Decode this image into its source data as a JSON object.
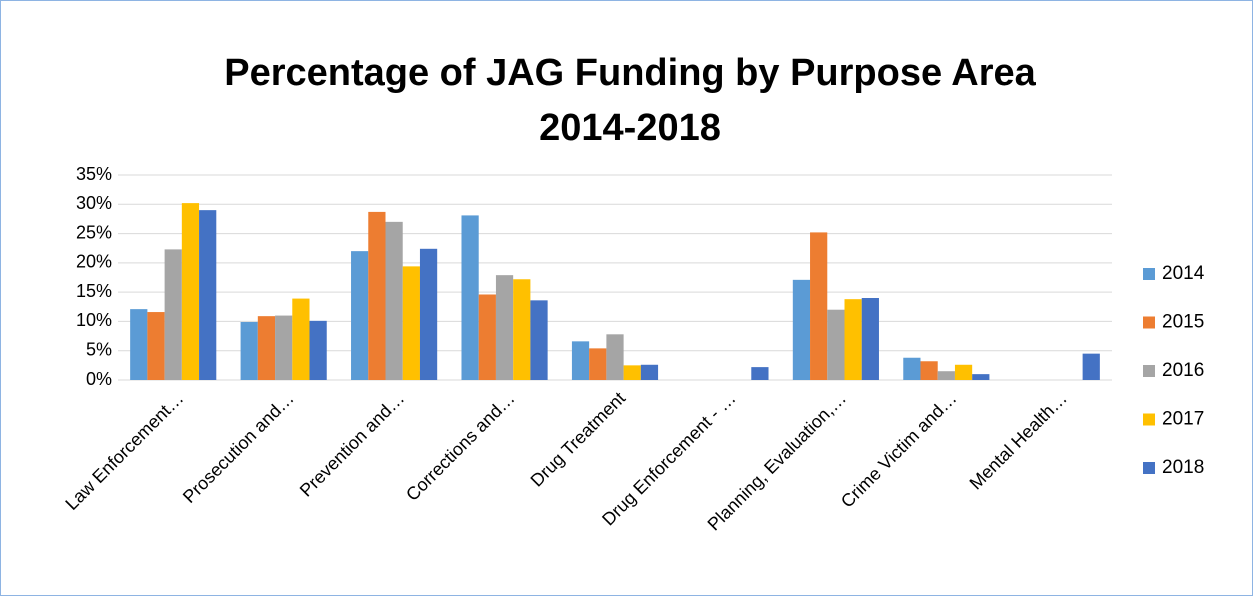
{
  "chart_data": {
    "type": "bar",
    "title": [
      "Percentage of JAG Funding by Purpose Area",
      "2014-2018"
    ],
    "categories": [
      "Law Enforcement…",
      "Prosecution and…",
      "Prevention and…",
      "Corrections and…",
      "Drug Treatment",
      "Drug Enforcement - …",
      "Planning, Evaluation,…",
      "Crime Victim and…",
      "Mental Health…"
    ],
    "series": [
      {
        "name": "2014",
        "color": "#5b9bd5",
        "values": [
          12.1,
          9.9,
          22.0,
          28.1,
          6.6,
          0,
          17.1,
          3.8,
          0
        ]
      },
      {
        "name": "2015",
        "color": "#ed7d31",
        "values": [
          11.6,
          10.9,
          28.7,
          14.6,
          5.4,
          0,
          25.2,
          3.2,
          0
        ]
      },
      {
        "name": "2016",
        "color": "#a5a5a5",
        "values": [
          22.3,
          11.0,
          27.0,
          17.9,
          7.8,
          0,
          12.0,
          1.5,
          0
        ]
      },
      {
        "name": "2017",
        "color": "#ffc000",
        "values": [
          30.2,
          13.9,
          19.4,
          17.2,
          2.5,
          0,
          13.8,
          2.6,
          0
        ]
      },
      {
        "name": "2018",
        "color": "#4472c4",
        "values": [
          29.0,
          10.1,
          22.4,
          13.6,
          2.6,
          2.2,
          14.0,
          1.0,
          4.5
        ]
      }
    ],
    "ylim": [
      0,
      35
    ],
    "yticks": [
      {
        "value": 0,
        "label": "0%"
      },
      {
        "value": 5,
        "label": "5%"
      },
      {
        "value": 10,
        "label": "10%"
      },
      {
        "value": 15,
        "label": "15%"
      },
      {
        "value": 20,
        "label": "20%"
      },
      {
        "value": 25,
        "label": "25%"
      },
      {
        "value": 30,
        "label": "30%"
      },
      {
        "value": 35,
        "label": "35%"
      }
    ],
    "grid": true,
    "legend": "right"
  }
}
